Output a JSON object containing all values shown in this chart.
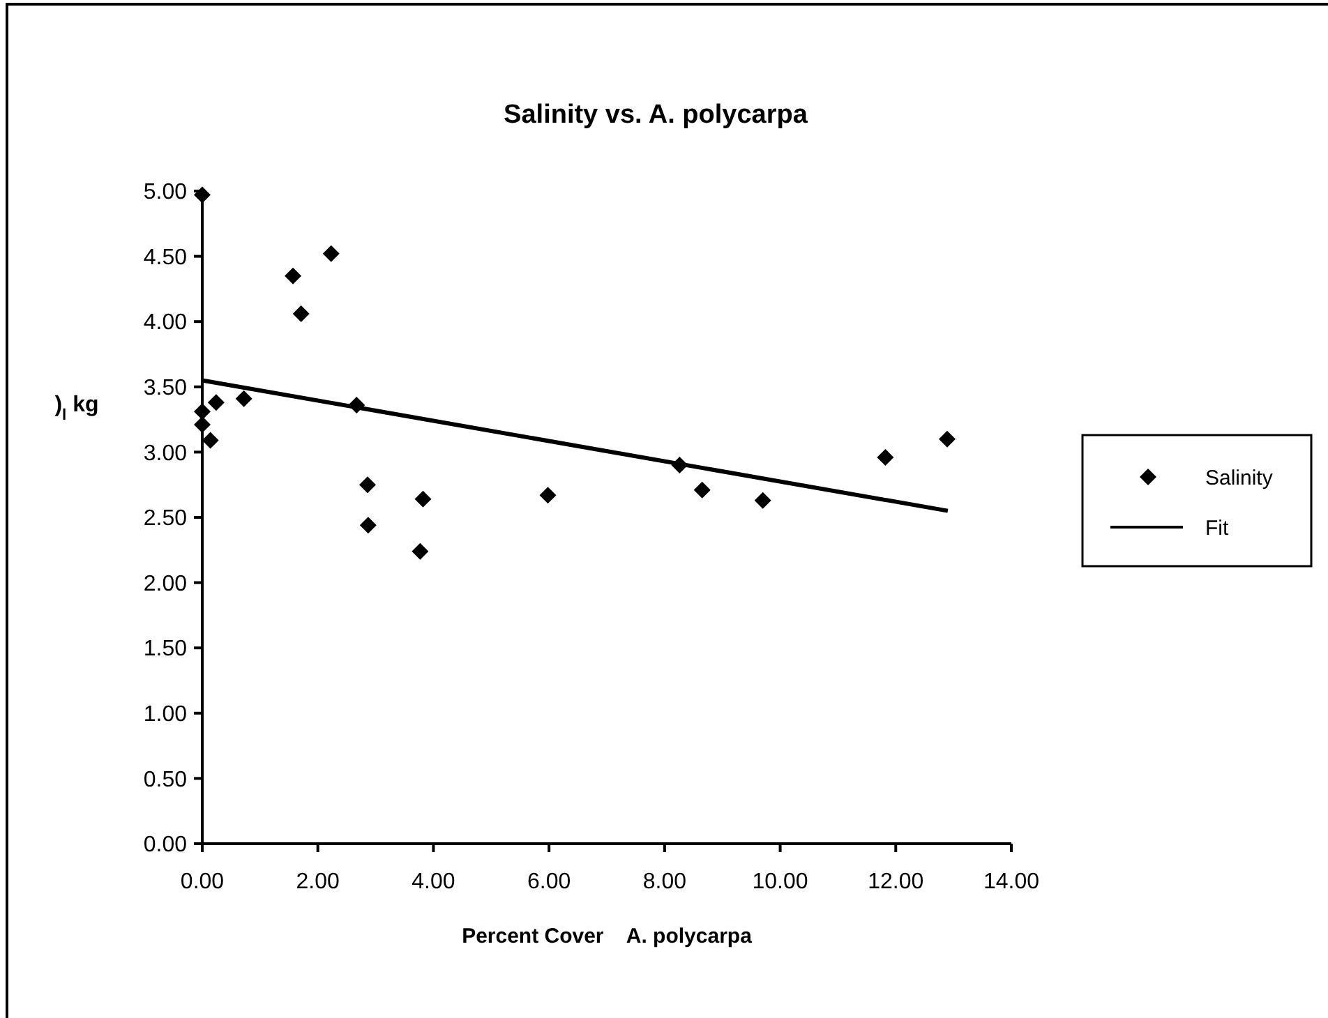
{
  "chart_data": {
    "type": "scatter",
    "title": "Salinity vs. A. polycarpa",
    "xlabel": "Percent Cover    A. polycarpa",
    "ylabel": ")$_{l}$ kg",
    "xlim": [
      0,
      14
    ],
    "xticks": [
      {
        "value": 0,
        "label": "0.00"
      },
      {
        "value": 2,
        "label": "2.00"
      },
      {
        "value": 4,
        "label": "4.00"
      },
      {
        "value": 6,
        "label": "6.00"
      },
      {
        "value": 8,
        "label": "8.00"
      },
      {
        "value": 10,
        "label": "10.00"
      },
      {
        "value": 12,
        "label": "12.00"
      },
      {
        "value": 14,
        "label": "14.00"
      }
    ],
    "ylim": [
      0,
      5
    ],
    "yticks": [
      {
        "value": 0,
        "label": "0.00"
      },
      {
        "value": 0.5,
        "label": "0.50"
      },
      {
        "value": 1,
        "label": "1.00"
      },
      {
        "value": 1.5,
        "label": "1.50"
      },
      {
        "value": 2,
        "label": "2.00"
      },
      {
        "value": 2.5,
        "label": "2.50"
      },
      {
        "value": 3,
        "label": "3.00"
      },
      {
        "value": 3.5,
        "label": "3.50"
      },
      {
        "value": 4,
        "label": "4.00"
      },
      {
        "value": 4.5,
        "label": "4.50"
      },
      {
        "value": 5,
        "label": "5.00"
      }
    ],
    "legend": "right",
    "grid": false,
    "series": [
      {
        "name": "Salinity",
        "marker": "diamond",
        "color": "#000000",
        "x": [
          0,
          1.57,
          2.23,
          1.71,
          0.24,
          0.72,
          0,
          0,
          0.14,
          2.67,
          2.86,
          2.87,
          3.82,
          3.77,
          5.98,
          8.26,
          8.65,
          9.7,
          11.82,
          12.89
        ],
        "values": [
          4.97,
          4.35,
          4.52,
          4.06,
          3.38,
          3.41,
          3.31,
          3.21,
          3.09,
          3.36,
          2.75,
          2.44,
          2.64,
          2.24,
          2.67,
          2.9,
          2.71,
          2.63,
          2.96,
          3.1
        ]
      },
      {
        "name": "Fit",
        "type": "line",
        "marker": "none",
        "color": "#000000",
        "x": [
          0,
          12.9
        ],
        "values": [
          3.55,
          2.55
        ]
      }
    ]
  }
}
